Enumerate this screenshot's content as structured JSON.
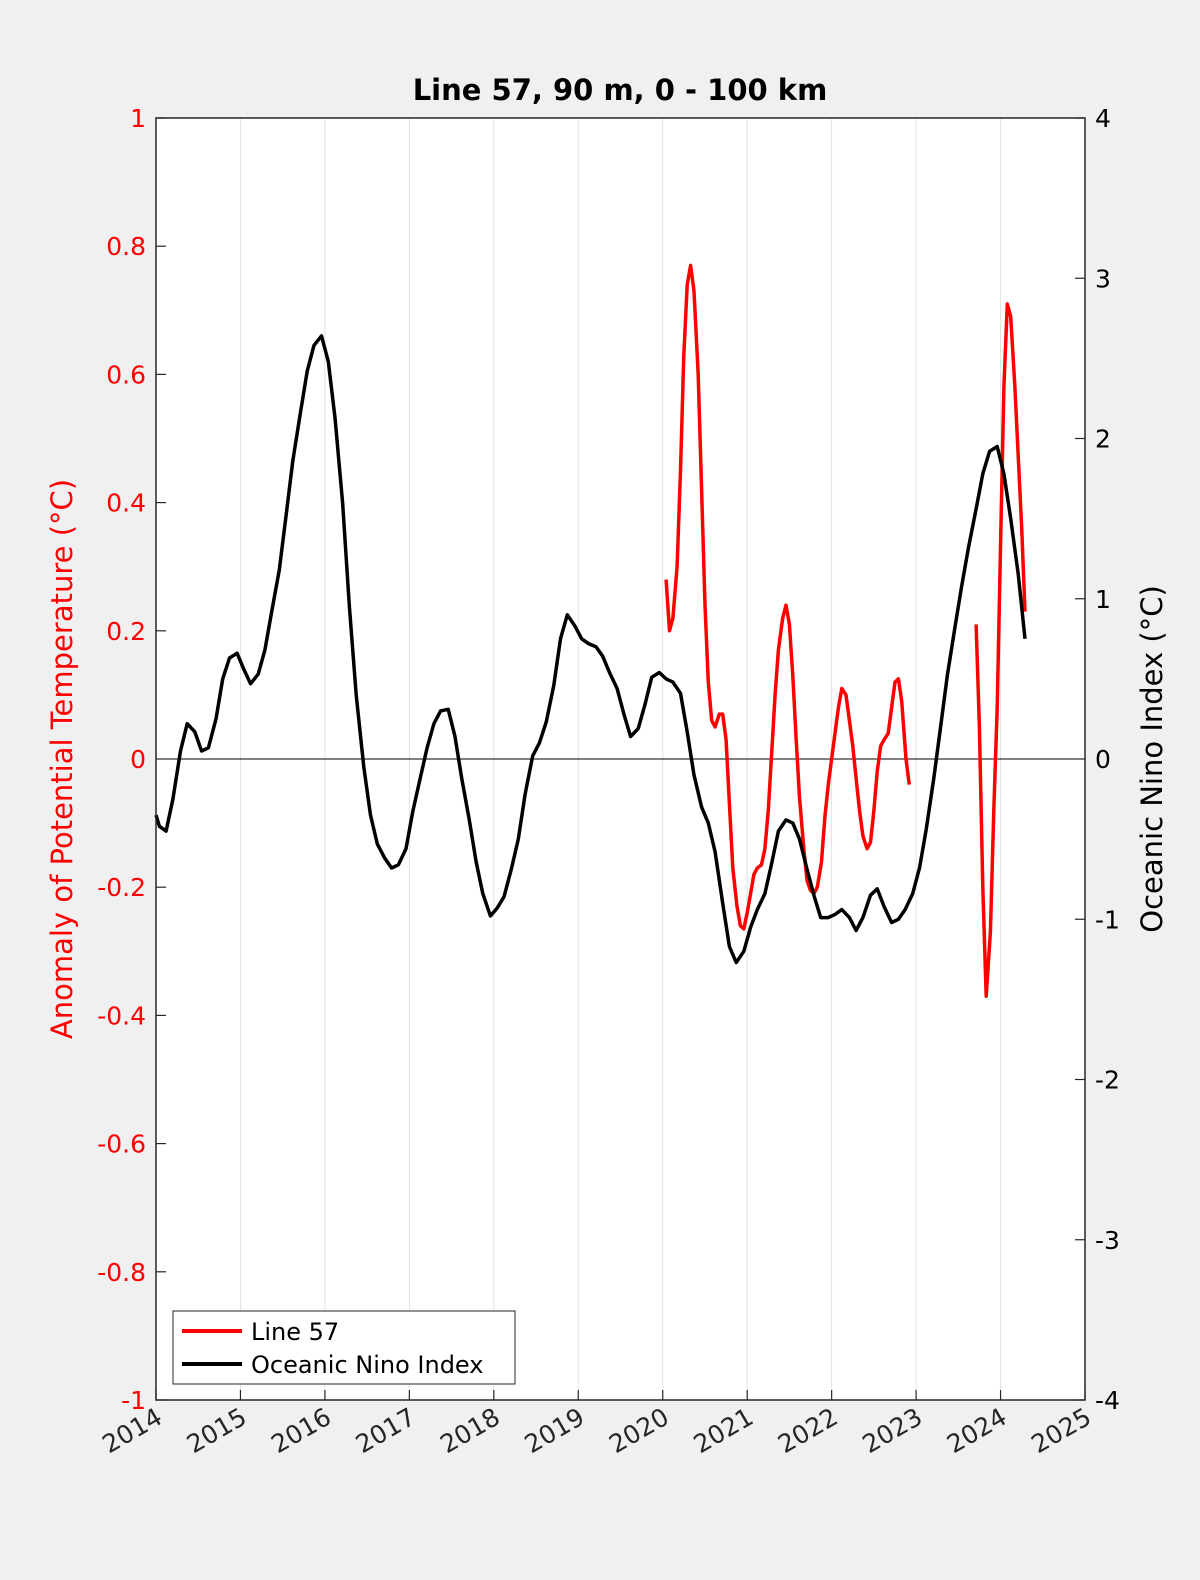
{
  "chart_data": {
    "type": "line",
    "title": "Line 57, 90 m, 0 - 100 km",
    "xlabel": "",
    "ylabel_left": "Anomaly of Potential Temperature (°C)",
    "ylabel_right": "Oceanic Nino Index (°C)",
    "xlim": [
      2014,
      2025
    ],
    "ylim_left": [
      -1,
      1
    ],
    "ylim_right": [
      -4,
      4
    ],
    "x_ticks": [
      "2014",
      "2015",
      "2016",
      "2017",
      "2018",
      "2019",
      "2020",
      "2021",
      "2022",
      "2023",
      "2024",
      "2025"
    ],
    "y_ticks_left": [
      "-1",
      "-0.8",
      "-0.6",
      "-0.4",
      "-0.2",
      "0",
      "0.2",
      "0.4",
      "0.6",
      "0.8",
      "1"
    ],
    "y_ticks_right": [
      "-4",
      "-3",
      "-2",
      "-1",
      "0",
      "1",
      "2",
      "3",
      "4"
    ],
    "grid": "vertical",
    "zero_line": true,
    "legend_position": "bottom-left",
    "colors": {
      "line57": "#ff0000",
      "oni": "#000000",
      "left_axis": "#ff0000",
      "right_axis": "#000000"
    },
    "series": [
      {
        "name": "Line 57",
        "axis": "left",
        "color": "#ff0000",
        "segments": [
          [
            [
              2020.04,
              0.28
            ],
            [
              2020.08,
              0.2
            ],
            [
              2020.12,
              0.22
            ],
            [
              2020.17,
              0.3
            ],
            [
              2020.21,
              0.45
            ],
            [
              2020.25,
              0.63
            ],
            [
              2020.29,
              0.74
            ],
            [
              2020.33,
              0.77
            ],
            [
              2020.37,
              0.73
            ],
            [
              2020.42,
              0.6
            ],
            [
              2020.46,
              0.42
            ],
            [
              2020.5,
              0.24
            ],
            [
              2020.54,
              0.12
            ],
            [
              2020.58,
              0.06
            ],
            [
              2020.62,
              0.05
            ],
            [
              2020.67,
              0.07
            ],
            [
              2020.71,
              0.07
            ],
            [
              2020.75,
              0.03
            ],
            [
              2020.79,
              -0.07
            ],
            [
              2020.83,
              -0.17
            ],
            [
              2020.88,
              -0.23
            ],
            [
              2020.92,
              -0.26
            ],
            [
              2020.96,
              -0.265
            ],
            [
              2021.0,
              -0.24
            ],
            [
              2021.04,
              -0.21
            ],
            [
              2021.08,
              -0.18
            ],
            [
              2021.12,
              -0.17
            ],
            [
              2021.17,
              -0.165
            ],
            [
              2021.21,
              -0.14
            ],
            [
              2021.25,
              -0.08
            ],
            [
              2021.29,
              0.01
            ],
            [
              2021.33,
              0.1
            ],
            [
              2021.37,
              0.17
            ],
            [
              2021.42,
              0.22
            ],
            [
              2021.46,
              0.24
            ],
            [
              2021.5,
              0.21
            ],
            [
              2021.54,
              0.13
            ],
            [
              2021.58,
              0.03
            ],
            [
              2021.62,
              -0.06
            ],
            [
              2021.67,
              -0.14
            ],
            [
              2021.71,
              -0.19
            ],
            [
              2021.75,
              -0.205
            ],
            [
              2021.79,
              -0.21
            ],
            [
              2021.83,
              -0.2
            ],
            [
              2021.88,
              -0.16
            ],
            [
              2021.92,
              -0.09
            ],
            [
              2021.96,
              -0.04
            ],
            [
              2022.0,
              0.0
            ],
            [
              2022.04,
              0.04
            ],
            [
              2022.08,
              0.08
            ],
            [
              2022.12,
              0.11
            ],
            [
              2022.17,
              0.1
            ],
            [
              2022.21,
              0.06
            ],
            [
              2022.25,
              0.02
            ],
            [
              2022.29,
              -0.03
            ],
            [
              2022.33,
              -0.08
            ],
            [
              2022.37,
              -0.12
            ],
            [
              2022.42,
              -0.14
            ],
            [
              2022.46,
              -0.13
            ],
            [
              2022.5,
              -0.08
            ],
            [
              2022.54,
              -0.02
            ],
            [
              2022.58,
              0.02
            ],
            [
              2022.62,
              0.03
            ],
            [
              2022.67,
              0.04
            ],
            [
              2022.71,
              0.08
            ],
            [
              2022.75,
              0.12
            ],
            [
              2022.79,
              0.125
            ],
            [
              2022.83,
              0.09
            ],
            [
              2022.88,
              0.0
            ],
            [
              2022.92,
              -0.04
            ]
          ],
          [
            [
              2023.71,
              0.21
            ],
            [
              2023.75,
              0.05
            ],
            [
              2023.79,
              -0.2
            ],
            [
              2023.83,
              -0.37
            ],
            [
              2023.88,
              -0.27
            ],
            [
              2023.92,
              -0.08
            ],
            [
              2023.96,
              0.08
            ],
            [
              2024.0,
              0.33
            ],
            [
              2024.04,
              0.58
            ],
            [
              2024.08,
              0.71
            ],
            [
              2024.12,
              0.69
            ],
            [
              2024.17,
              0.58
            ],
            [
              2024.21,
              0.47
            ],
            [
              2024.25,
              0.36
            ],
            [
              2024.29,
              0.23
            ]
          ]
        ]
      },
      {
        "name": "Oceanic Nino Index",
        "axis": "right",
        "color": "#000000",
        "segments": [
          [
            [
              2014.0,
              -0.35
            ],
            [
              2014.04,
              -0.42
            ],
            [
              2014.12,
              -0.45
            ],
            [
              2014.2,
              -0.25
            ],
            [
              2014.29,
              0.05
            ],
            [
              2014.37,
              0.22
            ],
            [
              2014.46,
              0.17
            ],
            [
              2014.54,
              0.05
            ],
            [
              2014.62,
              0.07
            ],
            [
              2014.71,
              0.25
            ],
            [
              2014.79,
              0.5
            ],
            [
              2014.87,
              0.63
            ],
            [
              2014.96,
              0.66
            ],
            [
              2015.04,
              0.56
            ],
            [
              2015.12,
              0.47
            ],
            [
              2015.21,
              0.53
            ],
            [
              2015.29,
              0.68
            ],
            [
              2015.37,
              0.92
            ],
            [
              2015.46,
              1.18
            ],
            [
              2015.54,
              1.52
            ],
            [
              2015.62,
              1.86
            ],
            [
              2015.71,
              2.16
            ],
            [
              2015.79,
              2.42
            ],
            [
              2015.87,
              2.58
            ],
            [
              2015.96,
              2.64
            ],
            [
              2016.04,
              2.48
            ],
            [
              2016.12,
              2.13
            ],
            [
              2016.21,
              1.6
            ],
            [
              2016.29,
              0.95
            ],
            [
              2016.37,
              0.4
            ],
            [
              2016.46,
              -0.05
            ],
            [
              2016.54,
              -0.35
            ],
            [
              2016.62,
              -0.53
            ],
            [
              2016.71,
              -0.62
            ],
            [
              2016.79,
              -0.68
            ],
            [
              2016.87,
              -0.66
            ],
            [
              2016.96,
              -0.56
            ],
            [
              2017.04,
              -0.33
            ],
            [
              2017.12,
              -0.14
            ],
            [
              2017.21,
              0.07
            ],
            [
              2017.29,
              0.22
            ],
            [
              2017.37,
              0.3
            ],
            [
              2017.46,
              0.31
            ],
            [
              2017.54,
              0.14
            ],
            [
              2017.62,
              -0.12
            ],
            [
              2017.71,
              -0.38
            ],
            [
              2017.79,
              -0.64
            ],
            [
              2017.87,
              -0.84
            ],
            [
              2017.96,
              -0.98
            ],
            [
              2018.04,
              -0.93
            ],
            [
              2018.12,
              -0.86
            ],
            [
              2018.21,
              -0.68
            ],
            [
              2018.29,
              -0.5
            ],
            [
              2018.37,
              -0.22
            ],
            [
              2018.46,
              0.02
            ],
            [
              2018.54,
              0.1
            ],
            [
              2018.62,
              0.23
            ],
            [
              2018.71,
              0.46
            ],
            [
              2018.79,
              0.75
            ],
            [
              2018.87,
              0.9
            ],
            [
              2018.96,
              0.83
            ],
            [
              2019.04,
              0.75
            ],
            [
              2019.12,
              0.72
            ],
            [
              2019.21,
              0.7
            ],
            [
              2019.29,
              0.64
            ],
            [
              2019.37,
              0.54
            ],
            [
              2019.46,
              0.44
            ],
            [
              2019.54,
              0.28
            ],
            [
              2019.62,
              0.14
            ],
            [
              2019.71,
              0.19
            ],
            [
              2019.79,
              0.34
            ],
            [
              2019.87,
              0.51
            ],
            [
              2019.96,
              0.54
            ],
            [
              2020.04,
              0.5
            ],
            [
              2020.12,
              0.48
            ],
            [
              2020.21,
              0.41
            ],
            [
              2020.29,
              0.17
            ],
            [
              2020.37,
              -0.1
            ],
            [
              2020.46,
              -0.3
            ],
            [
              2020.54,
              -0.4
            ],
            [
              2020.62,
              -0.58
            ],
            [
              2020.71,
              -0.9
            ],
            [
              2020.79,
              -1.17
            ],
            [
              2020.87,
              -1.27
            ],
            [
              2020.96,
              -1.2
            ],
            [
              2021.04,
              -1.05
            ],
            [
              2021.12,
              -0.94
            ],
            [
              2021.21,
              -0.84
            ],
            [
              2021.29,
              -0.65
            ],
            [
              2021.37,
              -0.45
            ],
            [
              2021.46,
              -0.38
            ],
            [
              2021.54,
              -0.4
            ],
            [
              2021.62,
              -0.5
            ],
            [
              2021.71,
              -0.69
            ],
            [
              2021.79,
              -0.85
            ],
            [
              2021.87,
              -0.99
            ],
            [
              2021.96,
              -0.99
            ],
            [
              2022.04,
              -0.97
            ],
            [
              2022.12,
              -0.94
            ],
            [
              2022.21,
              -0.99
            ],
            [
              2022.29,
              -1.07
            ],
            [
              2022.37,
              -0.99
            ],
            [
              2022.46,
              -0.85
            ],
            [
              2022.54,
              -0.81
            ],
            [
              2022.62,
              -0.92
            ],
            [
              2022.71,
              -1.02
            ],
            [
              2022.79,
              -1.0
            ],
            [
              2022.87,
              -0.94
            ],
            [
              2022.96,
              -0.84
            ],
            [
              2023.04,
              -0.68
            ],
            [
              2023.12,
              -0.44
            ],
            [
              2023.21,
              -0.12
            ],
            [
              2023.29,
              0.2
            ],
            [
              2023.37,
              0.52
            ],
            [
              2023.46,
              0.82
            ],
            [
              2023.54,
              1.08
            ],
            [
              2023.62,
              1.32
            ],
            [
              2023.71,
              1.56
            ],
            [
              2023.79,
              1.78
            ],
            [
              2023.87,
              1.92
            ],
            [
              2023.96,
              1.95
            ],
            [
              2024.04,
              1.78
            ],
            [
              2024.12,
              1.5
            ],
            [
              2024.21,
              1.15
            ],
            [
              2024.29,
              0.75
            ]
          ]
        ]
      }
    ]
  }
}
